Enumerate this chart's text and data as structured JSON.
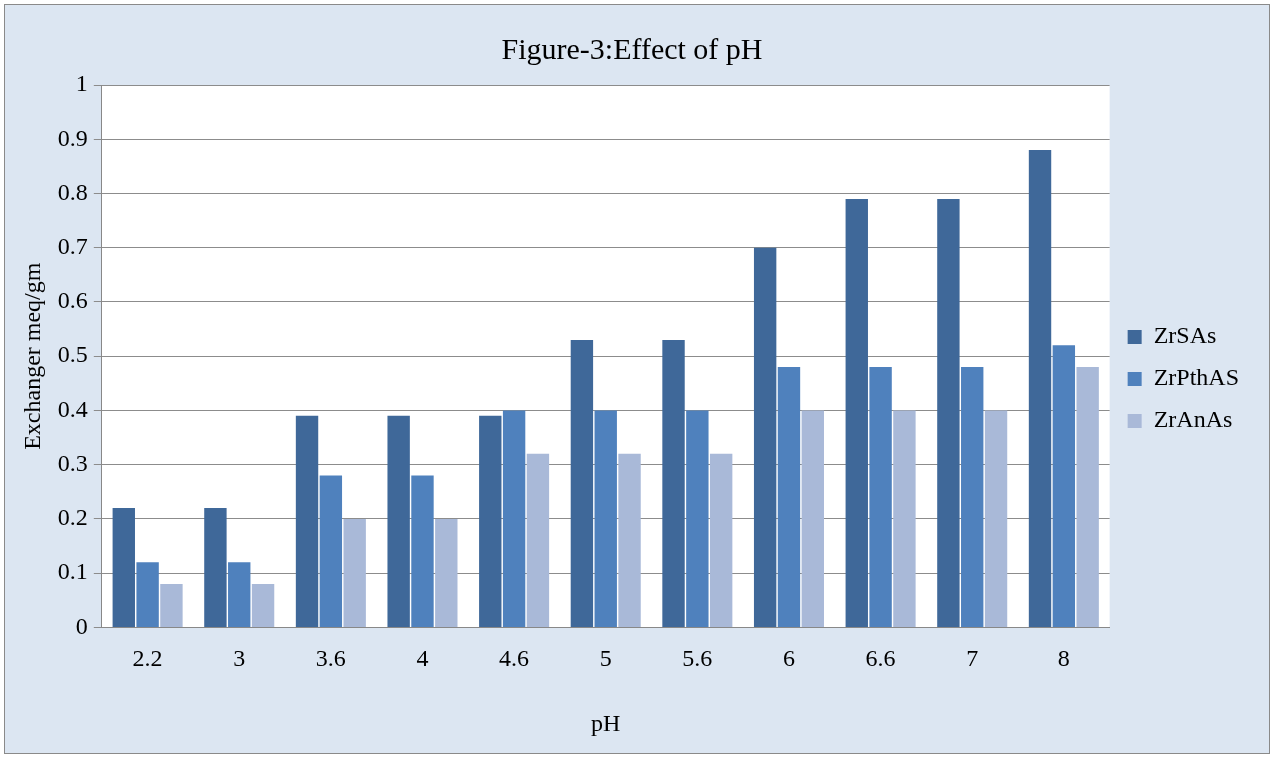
{
  "chart_data": {
    "type": "bar",
    "title": "Figure-3:Effect of pH",
    "xlabel": "pH",
    "ylabel": "Exchanger meq/gm",
    "categories": [
      "2.2",
      "3",
      "3.6",
      "4",
      "4.6",
      "5",
      "5.6",
      "6",
      "6.6",
      "7",
      "8"
    ],
    "series": [
      {
        "name": "ZrSAs",
        "color": "#3f6899",
        "values": [
          0.22,
          0.22,
          0.39,
          0.39,
          0.39,
          0.53,
          0.53,
          0.7,
          0.79,
          0.79,
          0.88
        ]
      },
      {
        "name": "ZrPthAS",
        "color": "#4f81bd",
        "values": [
          0.12,
          0.12,
          0.28,
          0.28,
          0.4,
          0.4,
          0.4,
          0.48,
          0.48,
          0.48,
          0.52
        ]
      },
      {
        "name": "ZrAnAs",
        "color": "#a9b9d8",
        "values": [
          0.08,
          0.08,
          0.2,
          0.2,
          0.32,
          0.32,
          0.32,
          0.4,
          0.4,
          0.4,
          0.48
        ]
      }
    ],
    "ylim": [
      0,
      1
    ],
    "yticks": [
      0,
      0.1,
      0.2,
      0.3,
      0.4,
      0.5,
      0.6,
      0.7,
      0.8,
      0.9,
      1
    ],
    "grid": "y",
    "legend": "right"
  }
}
